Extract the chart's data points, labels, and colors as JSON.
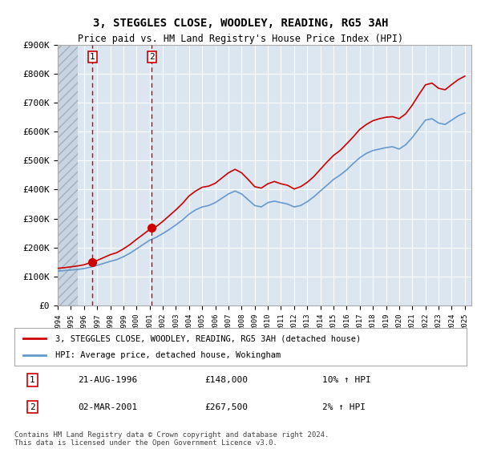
{
  "title": "3, STEGGLES CLOSE, WOODLEY, READING, RG5 3AH",
  "subtitle": "Price paid vs. HM Land Registry's House Price Index (HPI)",
  "ylabel": "",
  "ylim": [
    0,
    900000
  ],
  "yticks": [
    0,
    100000,
    200000,
    300000,
    400000,
    500000,
    600000,
    700000,
    800000,
    900000
  ],
  "ytick_labels": [
    "£0",
    "£100K",
    "£200K",
    "£300K",
    "£400K",
    "£500K",
    "£600K",
    "£700K",
    "£800K",
    "£900K"
  ],
  "xlim_start": 1994.0,
  "xlim_end": 2025.5,
  "background_color": "#ffffff",
  "plot_bg_color": "#dce6f1",
  "hatch_end_year": 1995.5,
  "hatch_color": "#b0b8c8",
  "grid_color": "#ffffff",
  "red_line_color": "#cc0000",
  "blue_line_color": "#6699cc",
  "sale1_year": 1996.64,
  "sale1_price": 148000,
  "sale2_year": 2001.17,
  "sale2_price": 267500,
  "legend_line1": "3, STEGGLES CLOSE, WOODLEY, READING, RG5 3AH (detached house)",
  "legend_line2": "HPI: Average price, detached house, Wokingham",
  "table_row1": [
    "1",
    "21-AUG-1996",
    "£148,000",
    "10% ↑ HPI"
  ],
  "table_row2": [
    "2",
    "02-MAR-2001",
    "£267,500",
    "2% ↑ HPI"
  ],
  "footer": "Contains HM Land Registry data © Crown copyright and database right 2024.\nThis data is licensed under the Open Government Licence v3.0.",
  "hpi_years": [
    1994,
    1994.5,
    1995,
    1995.5,
    1996,
    1996.5,
    1997,
    1997.5,
    1998,
    1998.5,
    1999,
    1999.5,
    2000,
    2000.5,
    2001,
    2001.5,
    2002,
    2002.5,
    2003,
    2003.5,
    2004,
    2004.5,
    2005,
    2005.5,
    2006,
    2006.5,
    2007,
    2007.5,
    2008,
    2008.5,
    2009,
    2009.5,
    2010,
    2010.5,
    2011,
    2011.5,
    2012,
    2012.5,
    2013,
    2013.5,
    2014,
    2014.5,
    2015,
    2015.5,
    2016,
    2016.5,
    2017,
    2017.5,
    2018,
    2018.5,
    2019,
    2019.5,
    2020,
    2020.5,
    2021,
    2021.5,
    2022,
    2022.5,
    2023,
    2023.5,
    2024,
    2024.5,
    2025
  ],
  "hpi_values": [
    118000,
    120000,
    122000,
    124000,
    127000,
    132000,
    138000,
    145000,
    152000,
    158000,
    168000,
    180000,
    195000,
    210000,
    225000,
    235000,
    248000,
    262000,
    278000,
    295000,
    315000,
    330000,
    340000,
    345000,
    355000,
    370000,
    385000,
    395000,
    385000,
    365000,
    345000,
    340000,
    355000,
    360000,
    355000,
    350000,
    340000,
    345000,
    358000,
    375000,
    395000,
    415000,
    435000,
    450000,
    468000,
    490000,
    510000,
    525000,
    535000,
    540000,
    545000,
    548000,
    540000,
    555000,
    580000,
    610000,
    640000,
    645000,
    630000,
    625000,
    640000,
    655000,
    665000
  ],
  "red_years": [
    1994,
    1994.5,
    1995,
    1995.5,
    1996,
    1996.5,
    1997,
    1997.5,
    1998,
    1998.5,
    1999,
    1999.5,
    2000,
    2000.5,
    2001,
    2001.5,
    2002,
    2002.5,
    2003,
    2003.5,
    2004,
    2004.5,
    2005,
    2005.5,
    2006,
    2006.5,
    2007,
    2007.5,
    2008,
    2008.5,
    2009,
    2009.5,
    2010,
    2010.5,
    2011,
    2011.5,
    2012,
    2012.5,
    2013,
    2013.5,
    2014,
    2014.5,
    2015,
    2015.5,
    2016,
    2016.5,
    2017,
    2017.5,
    2018,
    2018.5,
    2019,
    2019.5,
    2020,
    2020.5,
    2021,
    2021.5,
    2022,
    2022.5,
    2023,
    2023.5,
    2024,
    2024.5,
    2025
  ],
  "red_values": [
    128000,
    130000,
    133000,
    136000,
    140000,
    148000,
    155000,
    165000,
    175000,
    182000,
    195000,
    210000,
    228000,
    245000,
    262000,
    272000,
    290000,
    310000,
    330000,
    352000,
    378000,
    395000,
    408000,
    412000,
    422000,
    440000,
    458000,
    470000,
    458000,
    435000,
    410000,
    405000,
    420000,
    428000,
    420000,
    415000,
    402000,
    410000,
    425000,
    445000,
    470000,
    495000,
    518000,
    535000,
    558000,
    582000,
    608000,
    625000,
    638000,
    645000,
    650000,
    652000,
    645000,
    662000,
    692000,
    728000,
    762000,
    768000,
    750000,
    745000,
    763000,
    780000,
    792000
  ]
}
